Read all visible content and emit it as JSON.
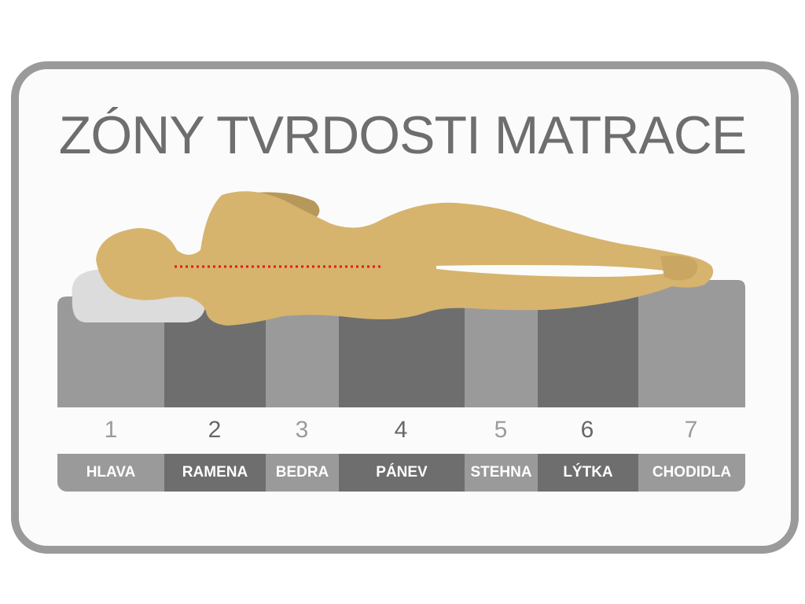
{
  "title": "ZÓNY TVRDOSTI MATRACE",
  "zones": [
    {
      "number": "1",
      "label": "HLAVA"
    },
    {
      "number": "2",
      "label": "RAMENA"
    },
    {
      "number": "3",
      "label": "BEDRA"
    },
    {
      "number": "4",
      "label": "PÁNEV"
    },
    {
      "number": "5",
      "label": "STEHNA"
    },
    {
      "number": "6",
      "label": "LÝTKA"
    },
    {
      "number": "7",
      "label": "CHODIDLA"
    }
  ],
  "colors": {
    "frame": "#9a9a9a",
    "zone_light": "#9a9a9a",
    "zone_dark": "#6e6e6e",
    "body": "#d6b46e",
    "body_shadow": "#b7985b",
    "pillow": "#dcdcdc",
    "spine_dots": "#e01b1b",
    "title": "#6e6e6e"
  }
}
